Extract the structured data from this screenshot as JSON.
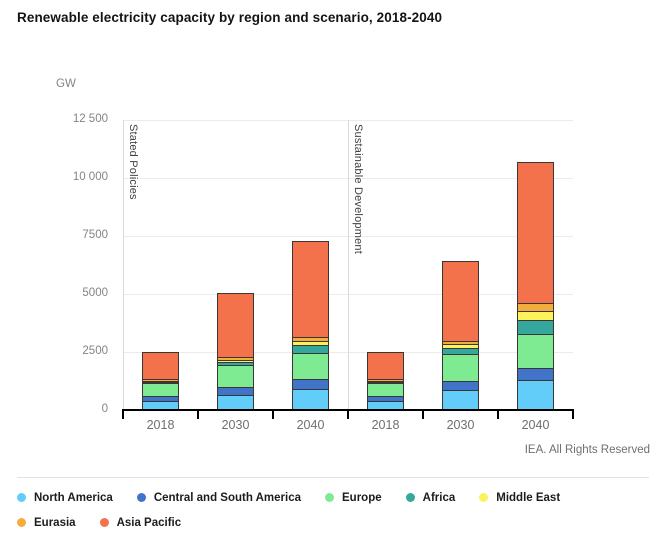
{
  "title": "Renewable electricity capacity by region and scenario, 2018-2040",
  "y_axis_unit": "GW",
  "footer": {
    "credit": "IEA. All Rights Reserved"
  },
  "chart_data": {
    "type": "bar",
    "stacked": true,
    "title": "Renewable electricity capacity by region and scenario, 2018-2040",
    "ylabel": "GW",
    "ylim": [
      0,
      12500
    ],
    "yticks": [
      0,
      2500,
      5000,
      7500,
      10000,
      12500
    ],
    "ytick_labels": [
      "0",
      "2500",
      "5000",
      "7500",
      "10 000",
      "12 500"
    ],
    "grid": true,
    "legend_position": "bottom",
    "panels": [
      {
        "label": "Stated Policies",
        "categories": [
          "2018",
          "2030",
          "2040"
        ],
        "series": [
          {
            "name": "North America",
            "values": [
              370,
              650,
              890
            ]
          },
          {
            "name": "Central and South America",
            "values": [
              220,
              350,
              430
            ]
          },
          {
            "name": "Europe",
            "values": [
              580,
              920,
              1150
            ]
          },
          {
            "name": "Africa",
            "values": [
              50,
              130,
              330
            ]
          },
          {
            "name": "Middle East",
            "values": [
              20,
              120,
              175
            ]
          },
          {
            "name": "Eurasia",
            "values": [
              100,
              120,
              155
            ]
          },
          {
            "name": "Asia Pacific",
            "values": [
              1160,
              2750,
              4160
            ]
          }
        ],
        "totals": [
          2500,
          5040,
          7290
        ]
      },
      {
        "label": "Sustainable Development",
        "categories": [
          "2018",
          "2030",
          "2040"
        ],
        "series": [
          {
            "name": "North America",
            "values": [
              370,
              880,
              1300
            ]
          },
          {
            "name": "Central and South America",
            "values": [
              220,
              360,
              510
            ]
          },
          {
            "name": "Europe",
            "values": [
              580,
              1190,
              1480
            ]
          },
          {
            "name": "Africa",
            "values": [
              50,
              255,
              580
            ]
          },
          {
            "name": "Middle East",
            "values": [
              20,
              170,
              405
            ]
          },
          {
            "name": "Eurasia",
            "values": [
              100,
              140,
              320
            ]
          },
          {
            "name": "Asia Pacific",
            "values": [
              1160,
              3425,
              6105
            ]
          }
        ],
        "totals": [
          2500,
          6420,
          10700
        ]
      }
    ],
    "legend": [
      {
        "name": "North America",
        "color": "#62cdf9"
      },
      {
        "name": "Central and South America",
        "color": "#4173c9"
      },
      {
        "name": "Europe",
        "color": "#7eeb92"
      },
      {
        "name": "Africa",
        "color": "#36a79c"
      },
      {
        "name": "Middle East",
        "color": "#fcf25b"
      },
      {
        "name": "Eurasia",
        "color": "#f3ad3d"
      },
      {
        "name": "Asia Pacific",
        "color": "#f4724b"
      }
    ],
    "colors": {
      "segment_border": "#3a3633",
      "gridline": "#ebebeb",
      "axis_line": "#000000",
      "panel_border": "#d9d9d9"
    }
  }
}
